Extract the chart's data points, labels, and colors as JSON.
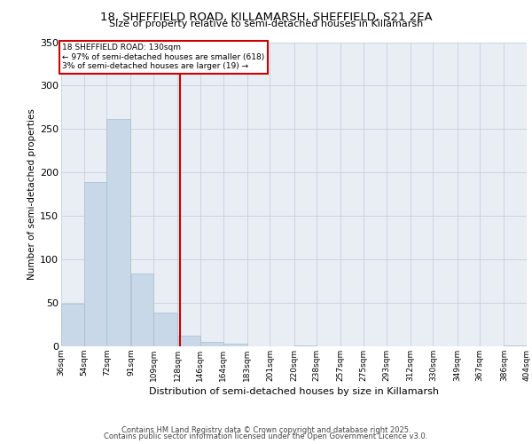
{
  "title": "18, SHEFFIELD ROAD, KILLAMARSH, SHEFFIELD, S21 2EA",
  "subtitle": "Size of property relative to semi-detached houses in Killamarsh",
  "xlabel": "Distribution of semi-detached houses by size in Killamarsh",
  "ylabel": "Number of semi-detached properties",
  "bar_color": "#c8d8e8",
  "bar_edge_color": "#a8bece",
  "grid_color": "#c8d0d8",
  "background_color": "#e8eef4",
  "property_line_value": 130,
  "property_line_color": "#cc0000",
  "annotation_title": "18 SHEFFIELD ROAD: 130sqm",
  "annotation_line1": "← 97% of semi-detached houses are smaller (618)",
  "annotation_line2": "3% of semi-detached houses are larger (19) →",
  "annotation_box_facecolor": "#ffffff",
  "annotation_border_color": "#cc0000",
  "bins": [
    36,
    54,
    72,
    91,
    109,
    128,
    146,
    164,
    183,
    201,
    220,
    238,
    257,
    275,
    293,
    312,
    330,
    349,
    367,
    386,
    404
  ],
  "bin_labels": [
    "36sqm",
    "54sqm",
    "72sqm",
    "91sqm",
    "109sqm",
    "128sqm",
    "146sqm",
    "164sqm",
    "183sqm",
    "201sqm",
    "220sqm",
    "238sqm",
    "257sqm",
    "275sqm",
    "293sqm",
    "312sqm",
    "330sqm",
    "349sqm",
    "367sqm",
    "386sqm",
    "404sqm"
  ],
  "counts": [
    49,
    189,
    262,
    84,
    39,
    12,
    5,
    3,
    0,
    0,
    1,
    0,
    0,
    0,
    0,
    0,
    0,
    0,
    0,
    1
  ],
  "ylim": [
    0,
    350
  ],
  "yticks": [
    0,
    50,
    100,
    150,
    200,
    250,
    300,
    350
  ],
  "footer1": "Contains HM Land Registry data © Crown copyright and database right 2025.",
  "footer2": "Contains public sector information licensed under the Open Government Licence v3.0."
}
